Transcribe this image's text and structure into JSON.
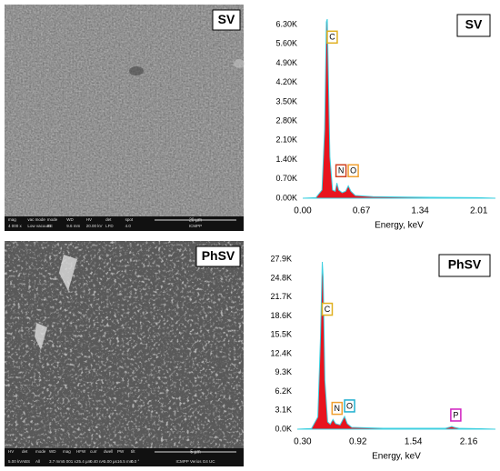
{
  "chart_data": [
    {
      "type": "area",
      "title": "SV",
      "xlabel": "Energy, keV",
      "x": [
        0,
        0.15,
        0.22,
        0.25,
        0.27,
        0.28,
        0.29,
        0.31,
        0.34,
        0.37,
        0.39,
        0.41,
        0.45,
        0.49,
        0.52,
        0.55,
        0.6,
        0.8,
        1.2,
        1.6,
        2.0,
        2.2
      ],
      "values": [
        0,
        20,
        300,
        2500,
        6400,
        6500,
        5000,
        1500,
        300,
        250,
        550,
        300,
        200,
        250,
        450,
        250,
        100,
        60,
        40,
        30,
        20,
        0
      ],
      "color": "#e8141e",
      "line_color": "#40d0e0",
      "xlim": [
        0,
        2.2
      ],
      "ylim": [
        0,
        6600
      ],
      "xticks": [
        {
          "value": 0,
          "label": "0.00"
        },
        0.67,
        1.34,
        2.01
      ],
      "yticks": [
        {
          "value": 0,
          "label": "0.00K"
        },
        {
          "value": 700,
          "label": "0.70K"
        },
        {
          "value": 1400,
          "label": "1.40K"
        },
        {
          "value": 2100,
          "label": "2.10K"
        },
        {
          "value": 2800,
          "label": "2.80K"
        },
        {
          "value": 3500,
          "label": "3.50K"
        },
        {
          "value": 4200,
          "label": "4.20K"
        },
        {
          "value": 4900,
          "label": "4.90K"
        },
        {
          "value": 5600,
          "label": "5.60K"
        },
        {
          "value": 6300,
          "label": "6.30K"
        }
      ],
      "annotations": [
        {
          "text": "C",
          "x": 0.29,
          "y": 5600,
          "color": "#e0b020"
        },
        {
          "text": "N",
          "x": 0.39,
          "y": 750,
          "color": "#d04020"
        },
        {
          "text": "O",
          "x": 0.53,
          "y": 750,
          "color": "#f0a030"
        }
      ]
    },
    {
      "type": "area",
      "title": "PhSV",
      "xlabel": "Energy, keV",
      "x": [
        0.24,
        0.4,
        0.47,
        0.5,
        0.52,
        0.53,
        0.55,
        0.58,
        0.61,
        0.64,
        0.67,
        0.72,
        0.77,
        0.8,
        0.85,
        1.2,
        1.9,
        1.95,
        1.97,
        2.0,
        2.05,
        2.3,
        2.46
      ],
      "values": [
        0,
        100,
        2000,
        15000,
        27500,
        25000,
        8000,
        1200,
        800,
        1600,
        900,
        700,
        2100,
        900,
        300,
        150,
        150,
        350,
        450,
        300,
        150,
        80,
        0
      ],
      "color": "#e8141e",
      "line_color": "#40d0e0",
      "xlim": [
        0.24,
        2.46
      ],
      "ylim": [
        0,
        29000
      ],
      "xticks": [
        {
          "value": 0.3,
          "label": "0.30"
        },
        0.92,
        1.54,
        2.16
      ],
      "yticks": [
        {
          "value": 0,
          "label": "0.0K"
        },
        {
          "value": 3100,
          "label": "3.1K"
        },
        {
          "value": 6200,
          "label": "6.2K"
        },
        {
          "value": 9300,
          "label": "9.3K"
        },
        {
          "value": 12400,
          "label": "12.4K"
        },
        {
          "value": 15500,
          "label": "15.5K"
        },
        {
          "value": 18600,
          "label": "18.6K"
        },
        {
          "value": 21700,
          "label": "21.7K"
        },
        {
          "value": 24800,
          "label": "24.8K"
        },
        {
          "value": 27900,
          "label": "27.9K"
        }
      ],
      "annotations": [
        {
          "text": "C",
          "x": 0.53,
          "y": 18600,
          "color": "#e0b020"
        },
        {
          "text": "N",
          "x": 0.64,
          "y": 2300,
          "color": "#f0a030"
        },
        {
          "text": "O",
          "x": 0.78,
          "y": 2700,
          "color": "#20b0d0"
        },
        {
          "text": "P",
          "x": 1.97,
          "y": 1200,
          "color": "#d020c0"
        }
      ]
    }
  ],
  "images": [
    {
      "label": "SV",
      "info_bar": [
        {
          "label": "mag",
          "value": "4 000 x"
        },
        {
          "label": "vac mode",
          "value": "Low vacuum"
        },
        {
          "label": "mode",
          "value": "SE"
        },
        {
          "label": "WD",
          "value": "9.6 mm"
        },
        {
          "label": "HV",
          "value": "20.00 kV"
        },
        {
          "label": "det",
          "value": "LFD"
        },
        {
          "label": "spot",
          "value": "4.0"
        }
      ],
      "scale": "20 µm",
      "lab": "ICMPP"
    },
    {
      "label": "PhSV",
      "info_bar": [
        {
          "label": "HV",
          "value": "5.00 kV"
        },
        {
          "label": "det",
          "value": "ABS"
        },
        {
          "label": "mode",
          "value": "All"
        },
        {
          "label": "WD",
          "value": "3.7 mm"
        },
        {
          "label": "mag",
          "value": "5 001 x"
        },
        {
          "label": "HFW",
          "value": "25.4 µm"
        },
        {
          "label": "curr",
          "value": "0.40 nA"
        },
        {
          "label": "dwell",
          "value": "5.00 µs"
        },
        {
          "label": "PW",
          "value": "16.5 mm"
        },
        {
          "label": "tilt",
          "value": "0.0 °"
        }
      ],
      "scale": "5 µm",
      "lab": "ICMPP Verios G4 UC"
    }
  ]
}
